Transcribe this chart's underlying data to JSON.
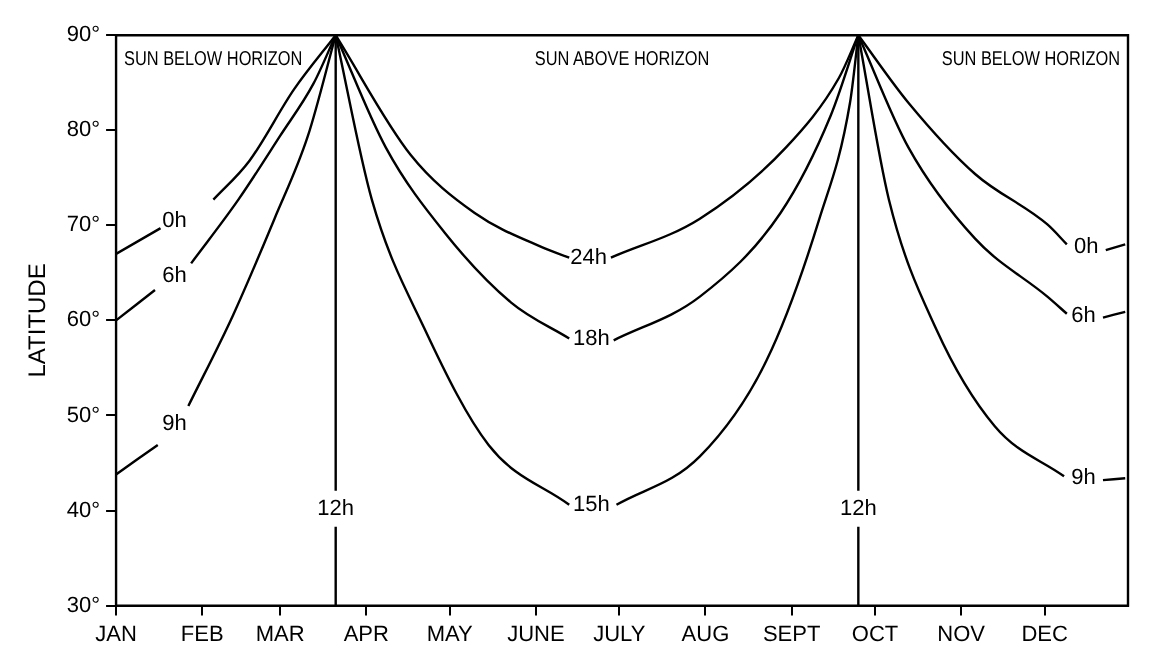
{
  "chart_data": {
    "type": "line",
    "ylabel": "LATITUDE",
    "xlim": [
      "--01-01",
      "--12-31"
    ],
    "ylim": [
      30,
      90
    ],
    "xticks": [
      {
        "value": "--01-01",
        "label": "JAN"
      },
      {
        "value": "--02-01",
        "label": "FEB"
      },
      {
        "value": "--03-01",
        "label": "MAR"
      },
      {
        "value": "--04-01",
        "label": "APR"
      },
      {
        "value": "--05-01",
        "label": "MAY"
      },
      {
        "value": "--06-01",
        "label": "JUNE"
      },
      {
        "value": "--07-01",
        "label": "JULY"
      },
      {
        "value": "--08-01",
        "label": "AUG"
      },
      {
        "value": "--09-01",
        "label": "SEPT"
      },
      {
        "value": "--10-01",
        "label": "OCT"
      },
      {
        "value": "--11-01",
        "label": "NOV"
      },
      {
        "value": "--12-01",
        "label": "DEC"
      }
    ],
    "yticks": [
      {
        "value": 30,
        "label": "30°"
      },
      {
        "value": 40,
        "label": "40°"
      },
      {
        "value": 50,
        "label": "50°"
      },
      {
        "value": 60,
        "label": "60°"
      },
      {
        "value": 70,
        "label": "70°"
      },
      {
        "value": 80,
        "label": "80°"
      },
      {
        "value": 90,
        "label": "90°"
      }
    ],
    "grid": false,
    "legend": false,
    "marker": "none",
    "line_style": "solid",
    "annotations": [
      "SUN BELOW HORIZON",
      "SUN ABOVE HORIZON",
      "SUN BELOW HORIZON"
    ],
    "ref_lines": [
      {
        "axis": "x",
        "value": "--03-21",
        "label": "12h",
        "color": "#000000"
      },
      {
        "axis": "x",
        "value": "--09-25",
        "label": "12h",
        "color": "#000000"
      }
    ],
    "series": [
      {
        "name": "0h",
        "color": "#000000",
        "x": [
          "--01-01",
          "--01-17",
          "--01-22",
          "--02-05",
          "--02-18",
          "--03-06",
          "--03-21"
        ],
        "values": [
          67,
          69.7,
          null,
          72.7,
          76.8,
          84.3,
          90
        ]
      },
      {
        "name": "6h",
        "color": "#000000",
        "x": [
          "--01-01",
          "--01-15",
          "--01-22",
          "--01-28",
          "--02-14",
          "--03-01",
          "--03-13",
          "--03-21"
        ],
        "values": [
          60,
          63.2,
          null,
          66,
          72.7,
          79.4,
          84.9,
          90
        ]
      },
      {
        "name": "9h",
        "color": "#000000",
        "x": [
          "--01-01",
          "--01-16",
          "--01-22",
          "--01-27",
          "--02-12",
          "--02-27",
          "--03-11",
          "--03-21"
        ],
        "values": [
          43.8,
          46.9,
          null,
          51,
          60.5,
          70.7,
          79.4,
          90
        ]
      },
      {
        "name": "24h",
        "color": "#000000",
        "x": [
          "--03-21",
          "--04-17",
          "--05-10",
          "--06-04",
          "--06-13",
          "--06-20",
          "--06-28",
          "--07-30",
          "--08-30",
          "--09-18",
          "--09-25"
        ],
        "values": [
          90,
          77.4,
          71.3,
          67.6,
          66.6,
          null,
          66.6,
          70.7,
          78.2,
          85.5,
          90
        ]
      },
      {
        "name": "18h",
        "color": "#000000",
        "x": [
          "--03-21",
          "--04-08",
          "--04-29",
          "--05-23",
          "--06-13",
          "--06-21",
          "--06-29",
          "--07-30",
          "--08-28",
          "--09-15",
          "--09-25"
        ],
        "values": [
          90,
          78.2,
          69.3,
          61.9,
          58.1,
          null,
          57.9,
          62.5,
          71.3,
          81.5,
          90
        ]
      },
      {
        "name": "15h",
        "color": "#000000",
        "x": [
          "--03-21",
          "--04-03",
          "--04-22",
          "--05-15",
          "--06-13",
          "--06-21",
          "--06-30",
          "--07-30",
          "--08-23",
          "--09-11",
          "--09-22",
          "--09-25"
        ],
        "values": [
          90,
          72.7,
          59.1,
          46.9,
          40.6,
          null,
          40.6,
          45.7,
          55.8,
          70.7,
          82.9,
          90
        ]
      },
      {
        "name": "0h",
        "color": "#000000",
        "x": [
          "--09-25",
          "--10-13",
          "--11-06",
          "--12-02",
          "--12-09",
          "--12-16",
          "--12-23",
          "--12-30"
        ],
        "values": [
          90,
          82.9,
          75.4,
          70.1,
          68,
          null,
          67.4,
          68
        ]
      },
      {
        "name": "6h",
        "color": "#000000",
        "x": [
          "--09-25",
          "--10-13",
          "--11-06",
          "--12-02",
          "--12-09",
          "--12-15",
          "--12-22",
          "--12-30"
        ],
        "values": [
          90,
          78.2,
          68.6,
          62.5,
          60.7,
          null,
          60.3,
          60.9
        ]
      },
      {
        "name": "9h",
        "color": "#000000",
        "x": [
          "--09-25",
          "--10-06",
          "--10-23",
          "--11-13",
          "--12-08",
          "--12-15",
          "--12-22",
          "--12-30"
        ],
        "values": [
          90,
          72.7,
          59.1,
          48.9,
          43.6,
          null,
          43.2,
          43.4
        ]
      }
    ]
  }
}
